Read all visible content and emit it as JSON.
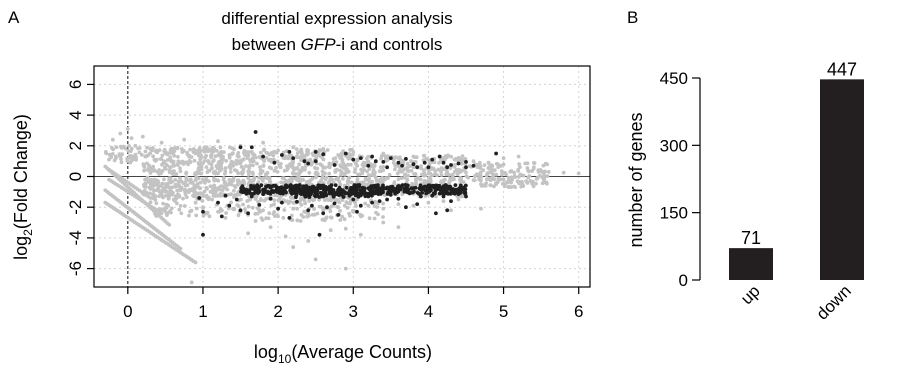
{
  "colors": {
    "background_points": "#c3c3c3",
    "significant_points": "#1f1f1f",
    "bar_fill": "#231f20",
    "grid": "#d4d4d4",
    "axis": "#000000"
  },
  "chart_data": [
    {
      "panel_label": "A",
      "type": "scatter",
      "title_line1": "differential expression analysis",
      "title_line2_prefix": "between ",
      "title_line2_italic": "GFP",
      "title_line2_suffix": "-i and controls",
      "xlabel_prefix": "log",
      "xlabel_sub": "10",
      "xlabel_suffix": "(Average Counts)",
      "ylabel_prefix": "log",
      "ylabel_sub": "2",
      "ylabel_suffix": "(Fold Change)",
      "xlim": [
        -0.45,
        6.15
      ],
      "ylim": [
        -7.2,
        7.2
      ],
      "x_ticks": [
        "0",
        "1",
        "2",
        "3",
        "4",
        "5",
        "6"
      ],
      "x_tick_values": [
        0,
        1,
        2,
        3,
        4,
        5,
        6
      ],
      "y_ticks": [
        "6",
        "4",
        "2",
        "0",
        "-2",
        "-4",
        "-6"
      ],
      "y_tick_values": [
        6,
        4,
        2,
        0,
        -2,
        -4,
        -6
      ],
      "grid": true,
      "reference_lines": {
        "horizontal_y": 0,
        "vertical_x": 0
      },
      "series": [
        {
          "role": "not significant",
          "color": "#c3c3c3",
          "points": [
            [
              -0.2,
              2.4
            ],
            [
              -0.1,
              2.8
            ],
            [
              0.0,
              3.1
            ],
            [
              0.05,
              2.5
            ],
            [
              -0.15,
              1.9
            ],
            [
              -0.25,
              1.1
            ],
            [
              0.1,
              2.0
            ],
            [
              0.2,
              2.6
            ],
            [
              0.3,
              1.8
            ],
            [
              0.45,
              2.2
            ],
            [
              0.6,
              1.6
            ],
            [
              0.75,
              2.4
            ],
            [
              0.9,
              1.5
            ],
            [
              1.05,
              1.9
            ],
            [
              1.2,
              2.3
            ],
            [
              1.35,
              1.4
            ],
            [
              1.5,
              2.0
            ],
            [
              1.65,
              1.6
            ],
            [
              1.8,
              2.2
            ],
            [
              2.0,
              1.7
            ],
            [
              2.2,
              1.9
            ],
            [
              2.4,
              1.5
            ],
            [
              2.6,
              1.8
            ],
            [
              2.8,
              1.4
            ],
            [
              3.0,
              1.6
            ],
            [
              3.2,
              1.3
            ],
            [
              3.4,
              1.5
            ],
            [
              3.6,
              1.2
            ],
            [
              3.8,
              1.3
            ],
            [
              4.0,
              1.1
            ],
            [
              4.2,
              1.2
            ],
            [
              4.4,
              1.0
            ],
            [
              4.6,
              1.0
            ],
            [
              4.8,
              0.9
            ],
            [
              5.0,
              1.2
            ],
            [
              5.2,
              1.3
            ],
            [
              5.4,
              0.5
            ],
            [
              5.6,
              0.3
            ],
            [
              5.8,
              0.25
            ],
            [
              6.0,
              0.2
            ],
            [
              0.3,
              -0.8
            ],
            [
              0.5,
              -1.0
            ],
            [
              0.7,
              -0.9
            ],
            [
              0.9,
              -1.1
            ],
            [
              1.1,
              -1.0
            ],
            [
              1.3,
              -1.2
            ],
            [
              1.5,
              -1.1
            ],
            [
              1.7,
              -1.3
            ],
            [
              1.9,
              -1.0
            ],
            [
              2.1,
              -1.2
            ],
            [
              2.3,
              -1.4
            ],
            [
              2.5,
              -1.1
            ],
            [
              2.7,
              -1.3
            ],
            [
              2.9,
              -1.2
            ],
            [
              3.1,
              -1.0
            ],
            [
              3.3,
              -1.1
            ],
            [
              3.5,
              -0.9
            ],
            [
              3.7,
              -1.0
            ],
            [
              3.9,
              -0.8
            ],
            [
              4.1,
              -0.9
            ],
            [
              4.3,
              -0.7
            ],
            [
              4.5,
              -0.6
            ],
            [
              4.7,
              -0.5
            ],
            [
              4.9,
              -0.5
            ],
            [
              5.1,
              -0.4
            ],
            [
              5.3,
              -0.3
            ],
            [
              1.0,
              -2.0
            ],
            [
              1.2,
              -2.3
            ],
            [
              1.4,
              -2.1
            ],
            [
              1.6,
              -2.5
            ],
            [
              1.8,
              -2.2
            ],
            [
              2.0,
              -2.6
            ],
            [
              2.2,
              -2.1
            ],
            [
              2.4,
              -2.4
            ],
            [
              2.6,
              -2.2
            ],
            [
              2.8,
              -2.0
            ],
            [
              3.0,
              -2.3
            ],
            [
              3.2,
              -1.9
            ],
            [
              3.4,
              -2.1
            ],
            [
              3.6,
              -1.8
            ],
            [
              3.8,
              -1.9
            ],
            [
              4.0,
              -1.7
            ],
            [
              4.2,
              -1.6
            ],
            [
              4.4,
              -1.5
            ],
            [
              2.6,
              -2.8
            ],
            [
              3.1,
              -2.6
            ],
            [
              1.9,
              -3.3
            ],
            [
              2.2,
              -4.6
            ],
            [
              2.5,
              -5.4
            ],
            [
              2.9,
              -6.0
            ],
            [
              3.6,
              -3.3
            ],
            [
              2.1,
              -3.9
            ],
            [
              1.7,
              -2.9
            ],
            [
              0.85,
              -6.9
            ],
            [
              2.3,
              -2.9
            ],
            [
              1.3,
              -2.7
            ],
            [
              2.9,
              -3.4
            ],
            [
              3.4,
              -3.0
            ],
            [
              4.3,
              -2.2
            ],
            [
              4.7,
              -2.1
            ],
            [
              1.6,
              -3.7
            ],
            [
              2.4,
              -4.2
            ],
            [
              2.7,
              -3.5
            ],
            [
              3.1,
              -3.8
            ]
          ],
          "stripes": [
            {
              "x": [
                -0.3,
                0.55
              ],
              "y": [
                0.65,
                -3.15
              ],
              "count": 34
            },
            {
              "x": [
                -0.3,
                0.7
              ],
              "y": [
                -0.9,
                -4.7
              ],
              "count": 40
            },
            {
              "x": [
                -0.3,
                0.9
              ],
              "y": [
                -1.7,
                -5.6
              ],
              "count": 44
            },
            {
              "x": [
                -0.25,
                0.3
              ],
              "y": [
                0.45,
                -1.4
              ],
              "count": 20
            },
            {
              "x": [
                -0.25,
                0.45
              ],
              "y": [
                -0.2,
                -2.4
              ],
              "count": 26
            }
          ],
          "bands": [
            {
              "x": [
                -0.3,
                0.2
              ],
              "y": [
                0.9,
                2.0
              ],
              "count": 45
            },
            {
              "x": [
                0.2,
                1.5
              ],
              "y": [
                0.15,
                1.9
              ],
              "count": 240
            },
            {
              "x": [
                1.5,
                3.0
              ],
              "y": [
                0.1,
                1.8
              ],
              "count": 250
            },
            {
              "x": [
                3.0,
                4.5
              ],
              "y": [
                0.05,
                1.4
              ],
              "count": 200
            },
            {
              "x": [
                4.5,
                5.6
              ],
              "y": [
                0.02,
                0.9
              ],
              "count": 80
            },
            {
              "x": [
                0.2,
                1.5
              ],
              "y": [
                -1.3,
                -0.05
              ],
              "count": 220
            },
            {
              "x": [
                1.5,
                3.0
              ],
              "y": [
                -1.6,
                -0.05
              ],
              "count": 230
            },
            {
              "x": [
                3.0,
                4.5
              ],
              "y": [
                -1.3,
                -0.05
              ],
              "count": 180
            },
            {
              "x": [
                4.5,
                5.6
              ],
              "y": [
                -0.7,
                -0.02
              ],
              "count": 70
            },
            {
              "x": [
                0.3,
                1.6
              ],
              "y": [
                -2.6,
                -1.2
              ],
              "count": 90
            },
            {
              "x": [
                1.6,
                3.4
              ],
              "y": [
                -2.9,
                -1.5
              ],
              "count": 110
            }
          ]
        },
        {
          "role": "significant",
          "color": "#1f1f1f",
          "points": [
            [
              1.7,
              2.9
            ],
            [
              1.5,
              1.9
            ],
            [
              1.65,
              1.9
            ],
            [
              1.8,
              1.3
            ],
            [
              2.05,
              1.4
            ],
            [
              2.2,
              1.2
            ],
            [
              2.35,
              1.0
            ],
            [
              2.5,
              1.0
            ],
            [
              2.6,
              1.45
            ],
            [
              2.9,
              1.5
            ],
            [
              3.0,
              1.1
            ],
            [
              3.1,
              1.2
            ],
            [
              3.25,
              1.3
            ],
            [
              3.4,
              0.95
            ],
            [
              3.5,
              1.2
            ],
            [
              3.6,
              0.9
            ],
            [
              3.7,
              1.15
            ],
            [
              3.8,
              0.8
            ],
            [
              3.95,
              0.9
            ],
            [
              4.05,
              1.1
            ],
            [
              4.2,
              0.9
            ],
            [
              4.3,
              0.75
            ],
            [
              4.4,
              0.85
            ],
            [
              4.5,
              0.95
            ],
            [
              4.25,
              0.6
            ],
            [
              4.0,
              0.6
            ],
            [
              3.85,
              0.6
            ],
            [
              3.45,
              0.6
            ],
            [
              4.15,
              1.3
            ],
            [
              3.2,
              0.7
            ],
            [
              2.75,
              0.75
            ],
            [
              2.4,
              0.85
            ],
            [
              4.5,
              0.6
            ],
            [
              4.6,
              0.7
            ],
            [
              3.65,
              0.7
            ],
            [
              4.9,
              1.5
            ],
            [
              2.15,
              1.6
            ],
            [
              2.5,
              1.6
            ],
            [
              1.95,
              0.9
            ],
            [
              3.3,
              1.0
            ],
            [
              1.3,
              -1.25
            ],
            [
              1.45,
              -1.5
            ],
            [
              1.55,
              -0.95
            ],
            [
              1.6,
              -2.4
            ],
            [
              1.75,
              -1.85
            ],
            [
              1.8,
              -0.85
            ],
            [
              1.9,
              -1.45
            ],
            [
              2.0,
              -2.1
            ],
            [
              2.1,
              -1.0
            ],
            [
              2.15,
              -2.7
            ],
            [
              2.25,
              -1.65
            ],
            [
              2.4,
              -2.2
            ],
            [
              2.5,
              -1.3
            ],
            [
              2.55,
              -3.8
            ],
            [
              2.6,
              -2.4
            ],
            [
              2.75,
              -1.75
            ],
            [
              2.8,
              -2.5
            ],
            [
              3.0,
              -1.5
            ],
            [
              3.1,
              -1.9
            ],
            [
              3.2,
              -1.3
            ],
            [
              3.35,
              -1.6
            ],
            [
              3.5,
              -1.2
            ],
            [
              3.6,
              -1.45
            ],
            [
              3.75,
              -1.1
            ],
            [
              3.9,
              -1.3
            ],
            [
              4.1,
              -2.4
            ],
            [
              4.2,
              -1.3
            ],
            [
              4.3,
              -1.6
            ],
            [
              4.4,
              -1.15
            ],
            [
              4.25,
              -2.2
            ],
            [
              1.0,
              -2.3
            ],
            [
              1.0,
              -3.8
            ],
            [
              1.2,
              -1.7
            ],
            [
              1.25,
              -2.6
            ],
            [
              1.35,
              -1.9
            ],
            [
              0.95,
              -1.4
            ],
            [
              1.5,
              -2.2
            ],
            [
              3.25,
              -1.7
            ],
            [
              3.7,
              -2.0
            ],
            [
              2.35,
              -1.2
            ],
            [
              1.65,
              -1.3
            ],
            [
              2.05,
              -1.7
            ],
            [
              2.65,
              -2.0
            ],
            [
              2.95,
              -1.25
            ],
            [
              3.45,
              -1.5
            ],
            [
              3.85,
              -1.8
            ],
            [
              4.05,
              -1.25
            ],
            [
              4.5,
              -1.3
            ],
            [
              3.05,
              -2.3
            ],
            [
              2.45,
              -1.9
            ]
          ],
          "bands": [
            {
              "x": [
                1.5,
                4.5
              ],
              "y": [
                -1.15,
                -0.55
              ],
              "count": 420
            },
            {
              "x": [
                2.2,
                3.3
              ],
              "y": [
                -1.35,
                -0.8
              ],
              "count": 80
            }
          ]
        }
      ]
    },
    {
      "panel_label": "B",
      "type": "bar",
      "categories": [
        "up",
        "down"
      ],
      "values": [
        71,
        447
      ],
      "value_labels": [
        "71",
        "447"
      ],
      "ylabel": "number of genes",
      "ylim": [
        0,
        450
      ],
      "y_ticks": [
        "0",
        "150",
        "300",
        "450"
      ],
      "y_tick_values": [
        0,
        150,
        300,
        450
      ],
      "grid": false,
      "bar_color": "#231f20"
    }
  ]
}
